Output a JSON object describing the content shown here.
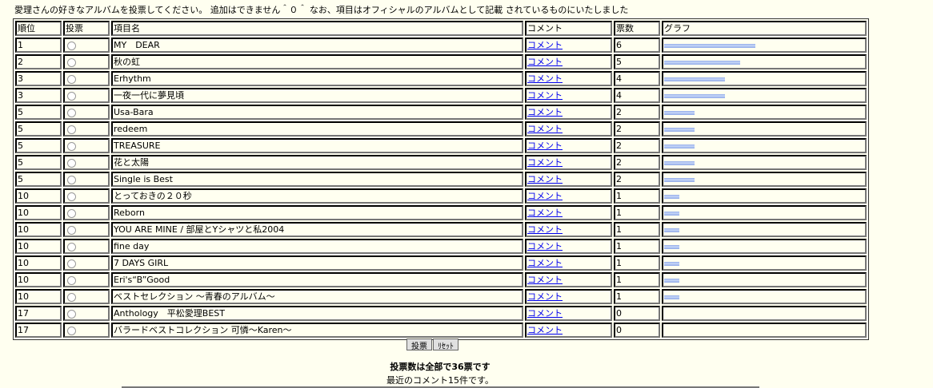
{
  "intro": "愛理さんの好きなアルバムを投票してください。 追加はできません＾０＾ なお、項目はオフィシャルのアルバムとして記載 されているものにいたしました",
  "headers": {
    "rank": "順位",
    "vote": "投票",
    "name": "項目名",
    "comment": "コメント",
    "count": "票数",
    "graph": "グラフ"
  },
  "bar_color": "#8ea8e8",
  "rows": [
    {
      "rank": "1",
      "name": "MY　DEAR",
      "comment": "コメント",
      "count": "6"
    },
    {
      "rank": "2",
      "name": "秋の虹",
      "comment": "コメント",
      "count": "5"
    },
    {
      "rank": "3",
      "name": "Erhythm",
      "comment": "コメント",
      "count": "4"
    },
    {
      "rank": "3",
      "name": "一夜一代に夢見頃",
      "comment": "コメント",
      "count": "4"
    },
    {
      "rank": "5",
      "name": "Usa-Bara",
      "comment": "コメント",
      "count": "2"
    },
    {
      "rank": "5",
      "name": "redeem",
      "comment": "コメント",
      "count": "2"
    },
    {
      "rank": "5",
      "name": "TREASURE",
      "comment": "コメント",
      "count": "2"
    },
    {
      "rank": "5",
      "name": "花と太陽",
      "comment": "コメント",
      "count": "2"
    },
    {
      "rank": "5",
      "name": "Single is Best",
      "comment": "コメント",
      "count": "2"
    },
    {
      "rank": "10",
      "name": "とっておきの２０秒",
      "comment": "コメント",
      "count": "1"
    },
    {
      "rank": "10",
      "name": "Reborn",
      "comment": "コメント",
      "count": "1"
    },
    {
      "rank": "10",
      "name": "YOU ARE MINE / 部屋とYシャツと私2004",
      "comment": "コメント",
      "count": "1"
    },
    {
      "rank": "10",
      "name": "fine day",
      "comment": "コメント",
      "count": "1"
    },
    {
      "rank": "10",
      "name": "7 DAYS GIRL",
      "comment": "コメント",
      "count": "1"
    },
    {
      "rank": "10",
      "name": "Eri's“B”Good",
      "comment": "コメント",
      "count": "1"
    },
    {
      "rank": "10",
      "name": "ベストセレクション ～青春のアルバム～",
      "comment": "コメント",
      "count": "1"
    },
    {
      "rank": "17",
      "name": "Anthology　平松愛理BEST",
      "comment": "コメント",
      "count": "0"
    },
    {
      "rank": "17",
      "name": "バラードベストコレクション 可憐～Karen～",
      "comment": "コメント",
      "count": "0"
    }
  ],
  "buttons": {
    "vote": "投票",
    "reset": "ﾘｾｯﾄ"
  },
  "total": "投票数は全部で36票です",
  "recent": "最近のコメント15件です。"
}
